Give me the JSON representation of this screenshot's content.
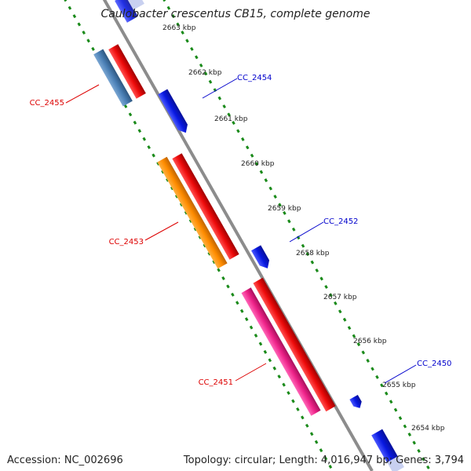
{
  "title": "Caulobacter crescentus CB15, complete genome",
  "footer": {
    "accession": "Accession: NC_002696",
    "summary": "Topology: circular; Length: 4,016,947 bp; Genes: 3,794"
  },
  "colors": {
    "backbone": "#8c8c8c",
    "ruler": "#1a8a1a",
    "forward_label": "#0000cc",
    "reverse_label": "#dd0000",
    "gene_blue": "#1020e8",
    "gene_red": "#ee1111",
    "gene_steelblue": "#4a7fb5",
    "gene_orange": "#ff8c00",
    "gene_pink": "#ee2288"
  },
  "ticks": [
    "2663 kbp",
    "2662 kbp",
    "2661 kbp",
    "2660 kbp",
    "2659 kbp",
    "2658 kbp",
    "2657 kbp",
    "2656 kbp",
    "2655 kbp",
    "2654 kbp"
  ],
  "genes": {
    "forward_labels": [
      "CC_2454",
      "CC_2452",
      "CC_2450"
    ],
    "reverse_labels": [
      "CC_2455",
      "CC_2453",
      "CC_2451"
    ]
  }
}
